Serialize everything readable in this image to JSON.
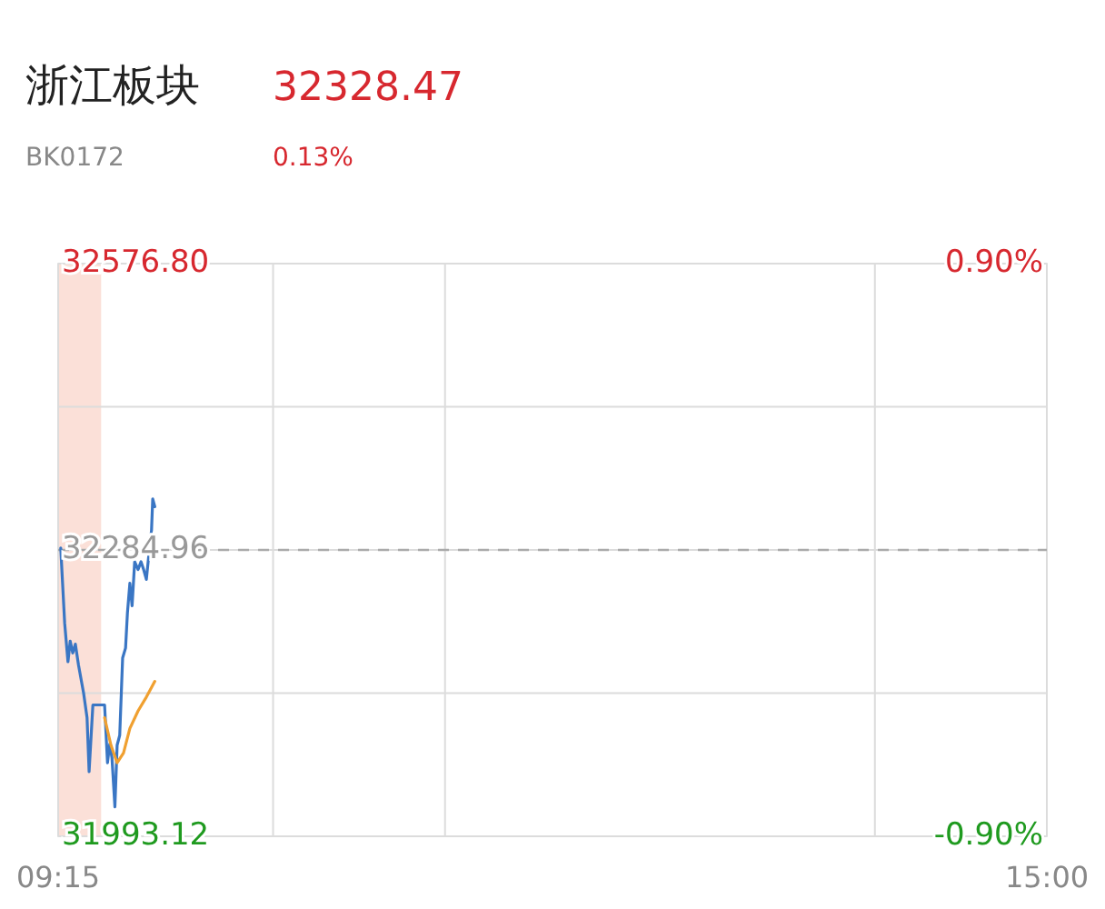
{
  "chart_data": {
    "type": "line",
    "title": "浙江板块",
    "subtitle": "BK0172",
    "annotations": [
      "32328.47",
      "0.13%"
    ],
    "xlim": [
      9.25,
      15
    ],
    "xticks": [
      {
        "value": 9.25,
        "label": "09:15"
      },
      {
        "value": 10.5,
        "label": null
      },
      {
        "value": 11.5,
        "label": null
      },
      {
        "value": 14,
        "label": null
      },
      {
        "value": 15,
        "label": "15:00"
      }
    ],
    "ylim": [
      31993.12,
      32576.8
    ],
    "yticks": [
      {
        "value": 31993.12,
        "label": "31993.12"
      },
      {
        "value": 32139.04,
        "label": null
      },
      {
        "value": 32284.96,
        "label": "32284.96"
      },
      {
        "value": 32430.88,
        "label": null
      },
      {
        "value": 32576.8,
        "label": "32576.80"
      }
    ],
    "y2lim": [
      -0.9,
      0.9
    ],
    "y2ticks": [
      {
        "value": -0.9,
        "label": "-0.90%"
      },
      {
        "value": 0.9,
        "label": "0.90%"
      }
    ],
    "grid": true,
    "ref_lines": [
      {
        "axis": "y",
        "value": 32284.96,
        "color": "#aaaaaa",
        "line_style": "dashed"
      }
    ],
    "bands": [
      {
        "axis": "x",
        "from": 9.25,
        "to": 9.5,
        "color": "#fbe0d8"
      }
    ],
    "series": [
      {
        "color": "#3a76c4",
        "x": [
          9.265,
          9.288,
          9.307,
          9.32,
          9.335,
          9.35,
          9.368,
          9.398,
          9.418,
          9.43,
          9.452,
          9.52,
          9.537,
          9.55,
          9.563,
          9.58,
          9.593,
          9.608,
          9.625,
          9.642,
          9.653,
          9.667,
          9.68,
          9.695,
          9.715,
          9.732,
          9.747,
          9.763,
          9.778,
          9.793,
          9.8,
          9.812
        ],
        "values": [
          32287,
          32210,
          32171,
          32192,
          32180,
          32189,
          32168,
          32139,
          32114,
          32059,
          32127,
          32127,
          32068,
          32087,
          32073,
          32023,
          32086,
          32096,
          32175,
          32185,
          32221,
          32251,
          32228,
          32273,
          32265,
          32273,
          32265,
          32255,
          32281,
          32305,
          32337,
          32329
        ]
      },
      {
        "color": "#f0a030",
        "x": [
          9.52,
          9.557,
          9.593,
          9.63,
          9.667,
          9.715,
          9.763,
          9.812
        ],
        "values": [
          32114,
          32086,
          32068,
          32078,
          32103,
          32121,
          32135,
          32151
        ]
      }
    ]
  }
}
